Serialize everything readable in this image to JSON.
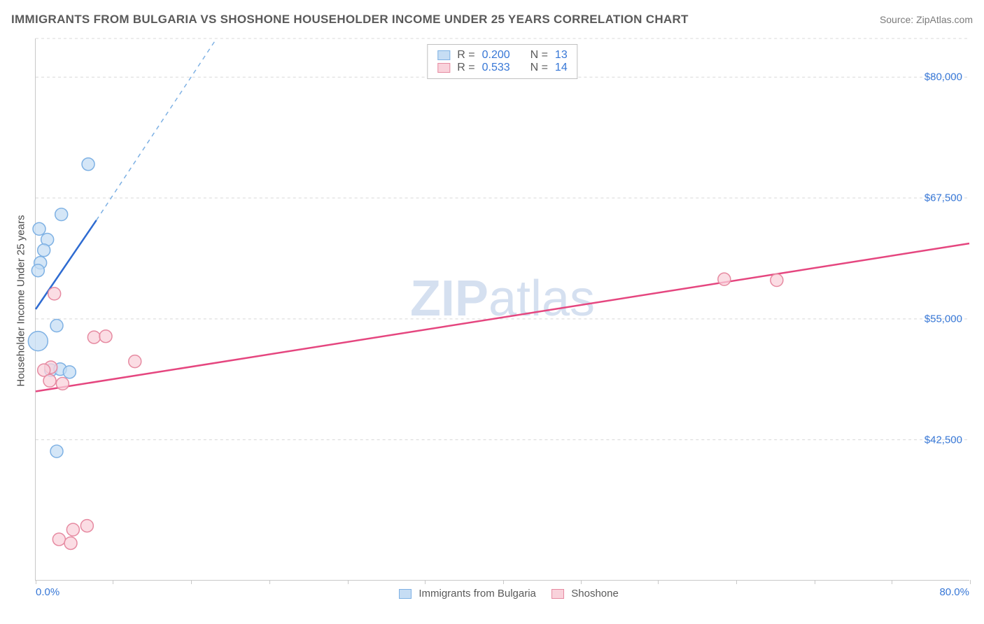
{
  "title": "IMMIGRANTS FROM BULGARIA VS SHOSHONE HOUSEHOLDER INCOME UNDER 25 YEARS CORRELATION CHART",
  "source": "Source: ZipAtlas.com",
  "watermark_bold": "ZIP",
  "watermark_thin": "atlas",
  "chart": {
    "type": "scatter",
    "background_color": "#ffffff",
    "grid_color": "#d8d8d8",
    "axis_color": "#c8c8c8",
    "text_color": "#5a5a5a",
    "tick_color": "#3777d6",
    "ylabel": "Householder Income Under 25 years",
    "xlim": [
      0,
      80
    ],
    "ylim": [
      28000,
      84000
    ],
    "xticks": [
      "0.0%",
      "80.0%"
    ],
    "xtick_marks_x": [
      0,
      6.6,
      13.3,
      20,
      26.7,
      33.3,
      40,
      46.7,
      53.3,
      60,
      66.7,
      73.3,
      80
    ],
    "yticks": [
      {
        "v": 42500,
        "label": "$42,500"
      },
      {
        "v": 55000,
        "label": "$55,000"
      },
      {
        "v": 67500,
        "label": "$67,500"
      },
      {
        "v": 80000,
        "label": "$80,000"
      }
    ],
    "series": [
      {
        "name": "Immigrants from Bulgaria",
        "fill": "#c6ddf4",
        "stroke": "#7eb1e4",
        "line": "#2e6bd1",
        "R_label": "R =",
        "R": "0.200",
        "N_label": "N =",
        "N": "13",
        "points": [
          {
            "x": 0.3,
            "y": 64300,
            "r": 9
          },
          {
            "x": 1.0,
            "y": 63200,
            "r": 9
          },
          {
            "x": 0.7,
            "y": 62100,
            "r": 9
          },
          {
            "x": 0.4,
            "y": 60800,
            "r": 9
          },
          {
            "x": 0.2,
            "y": 60000,
            "r": 9
          },
          {
            "x": 2.2,
            "y": 65800,
            "r": 9
          },
          {
            "x": 4.5,
            "y": 71000,
            "r": 9
          },
          {
            "x": 0.2,
            "y": 52700,
            "r": 14
          },
          {
            "x": 1.8,
            "y": 54300,
            "r": 9
          },
          {
            "x": 1.3,
            "y": 49700,
            "r": 9
          },
          {
            "x": 2.1,
            "y": 49800,
            "r": 9
          },
          {
            "x": 2.9,
            "y": 49500,
            "r": 9
          },
          {
            "x": 1.8,
            "y": 41300,
            "r": 9
          }
        ],
        "trend": {
          "x1": 0,
          "y1": 56000,
          "x2": 5.2,
          "y2": 65200
        },
        "extrap": {
          "x1": 5.2,
          "y1": 65200,
          "x2": 15.5,
          "y2": 84000
        }
      },
      {
        "name": "Shoshone",
        "fill": "#f9d2db",
        "stroke": "#e68aa1",
        "line": "#e5467f",
        "R_label": "R =",
        "R": "0.533",
        "N_label": "N =",
        "N": "14",
        "points": [
          {
            "x": 1.6,
            "y": 57600,
            "r": 9
          },
          {
            "x": 5.0,
            "y": 53100,
            "r": 9
          },
          {
            "x": 6.0,
            "y": 53200,
            "r": 9
          },
          {
            "x": 8.5,
            "y": 50600,
            "r": 9
          },
          {
            "x": 1.3,
            "y": 50000,
            "r": 9
          },
          {
            "x": 0.7,
            "y": 49700,
            "r": 9
          },
          {
            "x": 1.2,
            "y": 48600,
            "r": 9
          },
          {
            "x": 2.3,
            "y": 48300,
            "r": 9
          },
          {
            "x": 59.0,
            "y": 59100,
            "r": 9
          },
          {
            "x": 63.5,
            "y": 59000,
            "r": 9
          },
          {
            "x": 3.2,
            "y": 33200,
            "r": 9
          },
          {
            "x": 4.4,
            "y": 33600,
            "r": 9
          },
          {
            "x": 2.0,
            "y": 32200,
            "r": 9
          },
          {
            "x": 3.0,
            "y": 31800,
            "r": 9
          }
        ],
        "trend": {
          "x1": 0,
          "y1": 47500,
          "x2": 80,
          "y2": 62800
        },
        "extrap": null
      }
    ]
  }
}
